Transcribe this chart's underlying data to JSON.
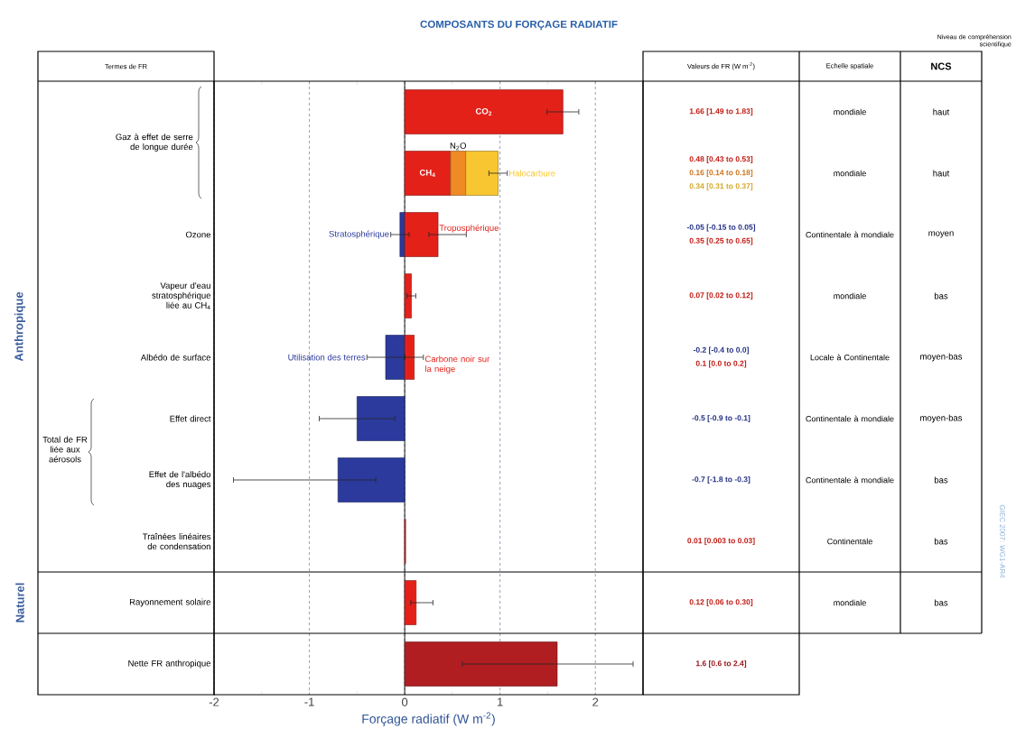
{
  "chart_data": {
    "type": "bar",
    "orientation": "horizontal",
    "title": "COMPOSANTS DU FORÇAGE RADIATIF",
    "xlabel": "Forçage radiatif  (W m$^{-2}$)",
    "categories": [
      null,
      null,
      "Ozone",
      "Vapeur d'eau stratosphérique liée au CH$_{4}$",
      "Albédo de surface",
      "Effet direct",
      "Effet de l'albédo des nuages",
      "Traînées linéaires de condensation",
      "Rayonnement solaire",
      "Nette FR anthropique"
    ],
    "xlim": [
      -2,
      2.5
    ],
    "xticks": [
      -2,
      {
        "value": -1.5,
        "label": null
      },
      -1,
      {
        "value": -0.5,
        "label": null
      },
      0,
      {
        "value": 0.5,
        "label": null
      },
      1,
      {
        "value": 1.5,
        "label": null
      },
      2
    ],
    "grid": "x",
    "series": [
      {
        "name": "CO$_{2}$",
        "color": "#e32119",
        "values": [
          1.66,
          null,
          null,
          null,
          null,
          null,
          null,
          null,
          null,
          null
        ],
        "errors": [
          [
            1.49,
            1.83
          ],
          null,
          null,
          null,
          null,
          null,
          null,
          null,
          null,
          null
        ]
      },
      {
        "name": "CH$_{4}$",
        "color": "#e32119",
        "values": [
          null,
          0.48,
          null,
          null,
          null,
          null,
          null,
          null,
          null,
          null
        ]
      },
      {
        "name": "N$_{2}$O",
        "color": "#f08a24",
        "base": [
          null,
          0.48,
          null,
          null,
          null,
          null,
          null,
          null,
          null,
          null
        ],
        "values": [
          null,
          0.16,
          null,
          null,
          null,
          null,
          null,
          null,
          null,
          null
        ]
      },
      {
        "name": "Halocarbure",
        "color": "#f8c630",
        "base": [
          null,
          0.64,
          null,
          null,
          null,
          null,
          null,
          null,
          null,
          null
        ],
        "values": [
          null,
          0.34,
          null,
          null,
          null,
          null,
          null,
          null,
          null,
          null
        ],
        "errors": [
          null,
          [
            0.88,
            1.08
          ],
          null,
          null,
          null,
          null,
          null,
          null,
          null,
          null
        ]
      },
      {
        "name": "Stratosphérique",
        "color": "#2b3a9c",
        "values": [
          null,
          null,
          -0.05,
          null,
          null,
          null,
          null,
          null,
          null,
          null
        ],
        "errors": [
          null,
          null,
          [
            -0.15,
            0.05
          ],
          null,
          null,
          null,
          null,
          null,
          null,
          null
        ]
      },
      {
        "name": "Troposphérique",
        "color": "#e32119",
        "values": [
          null,
          null,
          0.35,
          null,
          null,
          null,
          null,
          null,
          null,
          null
        ],
        "errors": [
          null,
          null,
          [
            0.25,
            0.65
          ],
          null,
          null,
          null,
          null,
          null,
          null,
          null
        ]
      },
      {
        "name": "Utilisation des terres",
        "color": "#2b3a9c",
        "values": [
          null,
          null,
          null,
          null,
          -0.2,
          null,
          null,
          null,
          null,
          null
        ],
        "errors": [
          null,
          null,
          null,
          null,
          [
            -0.4,
            0.0
          ],
          null,
          null,
          null,
          null,
          null
        ]
      },
      {
        "name": "Carbone noir sur la neige",
        "color": "#e32119",
        "values": [
          null,
          null,
          null,
          null,
          0.1,
          null,
          null,
          null,
          null,
          null
        ],
        "errors": [
          null,
          null,
          null,
          null,
          [
            0.0,
            0.2
          ],
          null,
          null,
          null,
          null,
          null
        ]
      },
      {
        "color": "#e32119",
        "values": [
          null,
          null,
          null,
          0.07,
          null,
          null,
          null,
          0.01,
          0.12,
          null
        ],
        "errors": [
          null,
          null,
          null,
          [
            0.02,
            0.12
          ],
          null,
          null,
          null,
          null,
          [
            0.06,
            0.3
          ],
          null
        ]
      },
      {
        "color": "#2b3a9c",
        "values": [
          null,
          null,
          null,
          null,
          null,
          -0.5,
          -0.7,
          null,
          null,
          null
        ],
        "errors": [
          null,
          null,
          null,
          null,
          null,
          [
            -0.9,
            -0.1
          ],
          [
            -1.8,
            -0.3
          ],
          null,
          null,
          null
        ]
      },
      {
        "color": "#b01e22",
        "values": [
          null,
          null,
          null,
          null,
          null,
          null,
          null,
          null,
          null,
          1.6
        ],
        "errors": [
          null,
          null,
          null,
          null,
          null,
          null,
          null,
          null,
          null,
          [
            0.6,
            2.4
          ]
        ]
      }
    ],
    "annotations": [
      "Termes de FR",
      "Valeurs de FR (W m$^{-2}$)",
      "Echelle spatiale",
      "NCS",
      "Niveau de compréhension scientifique",
      "Anthropique",
      "Naturel",
      "Gaz à effet de serre de longue durée",
      "Total de FR liée aux aérosols",
      "mondiale",
      "mondiale",
      "Continentale à mondiale",
      "mondiale",
      "Locale à Continentale",
      "Continentale à mondiale",
      "Continentale à mondiale",
      "Continentale",
      "mondiale",
      "haut",
      "haut",
      "moyen",
      "bas",
      "moyen-bas",
      "moyen-bas",
      "bas",
      "bas",
      "bas",
      "GIEC 2007: WG1-AR4",
      "1.66 [1.49 to 1.83]",
      "0.48 [0.43 to 0.53]",
      "0.16 [0.14 to 0.18]",
      "0.34 [0.31 to 0.37]",
      "-0.05 [-0.15 to 0.05]",
      "0.35 [0.25 to 0.65]",
      "0.07 [0.02 to 0.12]",
      "-0.2 [-0.4 to 0.0]",
      "0.1 [0.0 to 0.2]",
      "-0.5 [-0.9 to -0.1]",
      "-0.7 [-1.8 to -0.3]",
      "0.01 [0.003 to 0.03]",
      "0.12 [0.06 to 0.30]",
      "1.6 [0.6 to 2.4]"
    ]
  }
}
